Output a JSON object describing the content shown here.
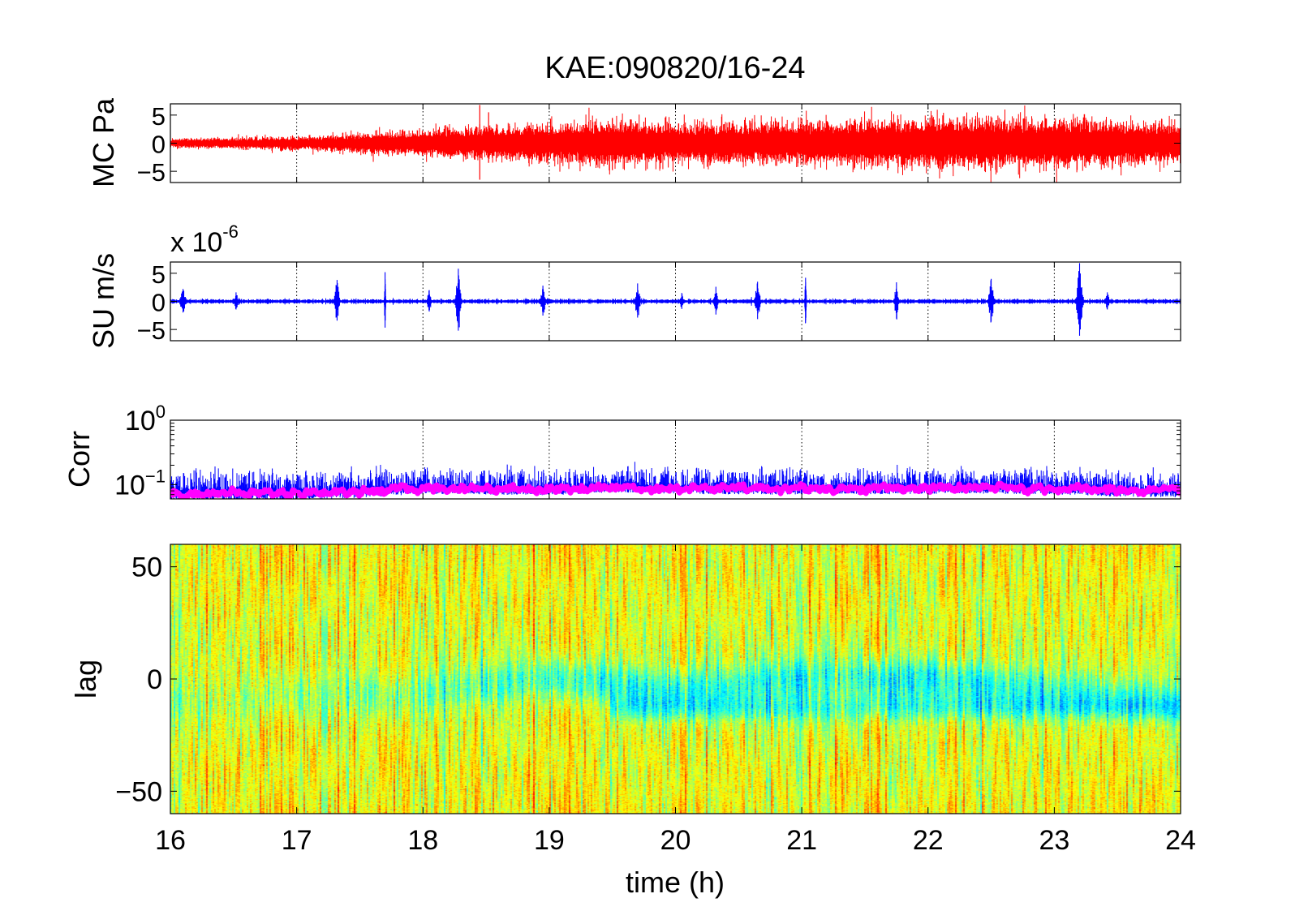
{
  "figure": {
    "title": "KAE:090820/16-24"
  },
  "chart_data": [
    {
      "type": "line",
      "panel": "pressure",
      "ylabel": "MC Pa",
      "xlim": [
        16,
        24
      ],
      "ylim": [
        -7,
        7
      ],
      "yticks": [
        5,
        0,
        -5
      ],
      "ytick_labels": [
        "5",
        "0",
        "-5"
      ],
      "grid": "x-dotted",
      "series": [
        {
          "color": "#ff0000",
          "envelope": {
            "x": [
              16,
              17,
              17.5,
              18,
              18.5,
              19,
              19.5,
              20,
              20.5,
              21,
              21.5,
              22,
              22.5,
              23,
              23.5,
              24
            ],
            "amplitude": [
              0.6,
              0.9,
              1.3,
              1.8,
              2.2,
              2.5,
              3.0,
              2.7,
              2.7,
              2.8,
              3.1,
              3.3,
              3.3,
              3.3,
              3.0,
              2.5
            ]
          },
          "spikes": [
            {
              "x": 18.45,
              "top": 6.8,
              "bottom": -6.5
            },
            {
              "x": 18.52,
              "top": 5.5,
              "bottom": -3.5
            },
            {
              "x": 19.5,
              "top": 4.5,
              "bottom": -4.8
            },
            {
              "x": 22.45,
              "top": 3.8,
              "bottom": -5.0
            }
          ]
        }
      ]
    },
    {
      "type": "line",
      "panel": "velocity",
      "ylabel": "SU m/s",
      "scale_label": "x 10",
      "scale_exponent": "-6",
      "xlim": [
        16,
        24
      ],
      "ylim": [
        -7,
        7
      ],
      "yticks": [
        5,
        0,
        -5
      ],
      "ytick_labels": [
        "5",
        "0",
        "-5"
      ],
      "grid": "x-dotted",
      "series": [
        {
          "color": "#0000ff",
          "baseline_amplitude": 0.25,
          "bursts": [
            {
              "x": 16.1,
              "amp": 2.2,
              "width": 0.06
            },
            {
              "x": 16.52,
              "amp": 1.6,
              "width": 0.05
            },
            {
              "x": 17.32,
              "amp": 3.8,
              "width": 0.05
            },
            {
              "x": 17.7,
              "amp": 5.2,
              "width": 0.012
            },
            {
              "x": 18.05,
              "amp": 2.0,
              "width": 0.04
            },
            {
              "x": 18.28,
              "amp": 5.8,
              "width": 0.05
            },
            {
              "x": 18.95,
              "amp": 2.8,
              "width": 0.05
            },
            {
              "x": 19.7,
              "amp": 3.2,
              "width": 0.05
            },
            {
              "x": 20.05,
              "amp": 1.5,
              "width": 0.04
            },
            {
              "x": 20.32,
              "amp": 2.6,
              "width": 0.04
            },
            {
              "x": 20.65,
              "amp": 3.5,
              "width": 0.05
            },
            {
              "x": 21.03,
              "amp": 4.2,
              "width": 0.015
            },
            {
              "x": 21.75,
              "amp": 3.4,
              "width": 0.04
            },
            {
              "x": 22.5,
              "amp": 4.0,
              "width": 0.05
            },
            {
              "x": 23.2,
              "amp": 6.8,
              "width": 0.06
            },
            {
              "x": 23.42,
              "amp": 1.6,
              "width": 0.04
            }
          ]
        }
      ]
    },
    {
      "type": "line",
      "panel": "correlation",
      "ylabel": "Corr",
      "yscale": "log",
      "xlim": [
        16,
        24
      ],
      "ylim": [
        0.06,
        1.0
      ],
      "ytick_labels": [
        {
          "base": "10",
          "exp": "0",
          "value": 1.0
        },
        {
          "base": "10",
          "exp": "-1",
          "value": 0.1
        }
      ],
      "grid": "x-dotted",
      "series": [
        {
          "color": "#0000ff",
          "trend": {
            "x": [
              16,
              17,
              17.5,
              18,
              18.5,
              19,
              19.5,
              20,
              20.5,
              21,
              21.5,
              22,
              22.5,
              23,
              23.5,
              24
            ],
            "y": [
              0.075,
              0.078,
              0.082,
              0.092,
              0.09,
              0.088,
              0.095,
              0.092,
              0.09,
              0.09,
              0.09,
              0.092,
              0.092,
              0.09,
              0.085,
              0.082
            ]
          },
          "upper_spread": 0.055
        },
        {
          "color": "#ff00ff",
          "trend": {
            "x": [
              16,
              17,
              17.5,
              18,
              18.5,
              19,
              19.5,
              20,
              20.5,
              21,
              21.5,
              22,
              22.5,
              23,
              23.5,
              24
            ],
            "y": [
              0.072,
              0.075,
              0.078,
              0.088,
              0.088,
              0.085,
              0.09,
              0.088,
              0.087,
              0.088,
              0.087,
              0.089,
              0.088,
              0.087,
              0.082,
              0.078
            ]
          }
        }
      ]
    },
    {
      "type": "heatmap",
      "panel": "lag",
      "ylabel": "lag",
      "xlabel": "time (h)",
      "xlim": [
        16,
        24
      ],
      "ylim": [
        -60,
        60
      ],
      "yticks": [
        50,
        0,
        -50
      ],
      "ytick_labels": [
        "50",
        "0",
        "-50"
      ],
      "xticks": [
        16,
        17,
        18,
        19,
        20,
        21,
        22,
        23,
        24
      ],
      "xtick_labels": [
        "16",
        "17",
        "18",
        "19",
        "20",
        "21",
        "22",
        "23",
        "24"
      ],
      "colormap": "jet",
      "features": {
        "low_band_center_by_hour": {
          "x": [
            16,
            17,
            18,
            19,
            20,
            21,
            22,
            23,
            24
          ],
          "y": [
            -10,
            -8,
            -6,
            0,
            -5,
            0,
            0,
            -5,
            -10
          ]
        },
        "low_band_strength_by_hour": {
          "x": [
            16,
            17,
            18,
            19,
            20,
            21,
            22,
            23,
            24
          ],
          "y": [
            0.15,
            0.2,
            0.35,
            0.55,
            0.6,
            0.6,
            0.65,
            0.55,
            0.45
          ]
        },
        "secondary_band": {
          "y": -13,
          "from": 19.5,
          "to": 24
        }
      }
    }
  ]
}
